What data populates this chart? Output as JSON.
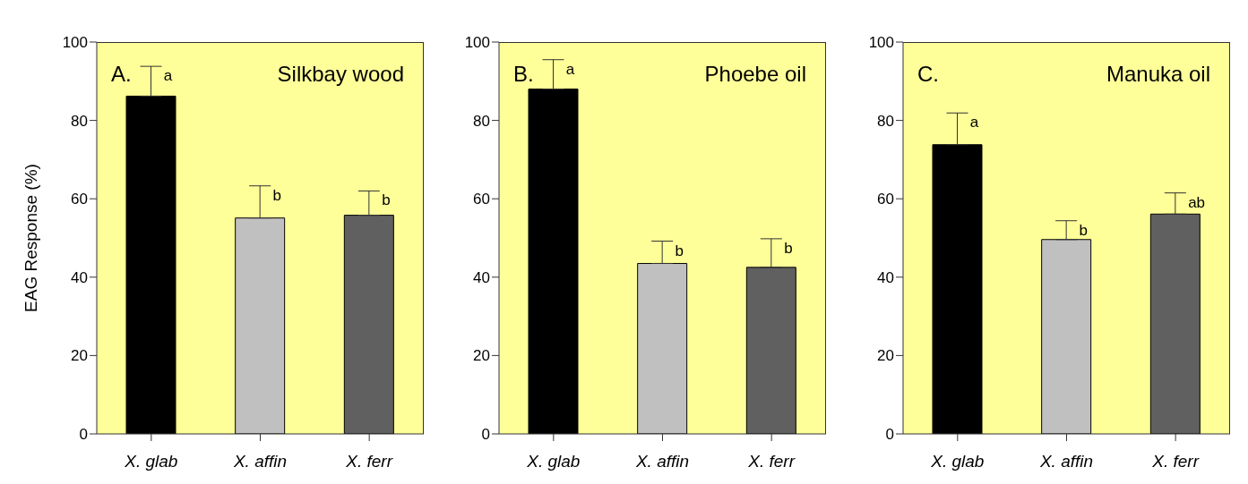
{
  "chart_data": [
    {
      "type": "bar",
      "title": "Silkbay wood",
      "ylabel": "EAG  Response  (%)",
      "categories": [
        "X. glab",
        "X. affin",
        "X. ferr"
      ],
      "values": [
        86.2,
        55.1,
        55.8
      ],
      "colors": [
        "#000000",
        "#c0c0c0",
        "#606060"
      ],
      "errors": [
        [
          86.2,
          93.8
        ],
        [
          55.1,
          63.3
        ],
        [
          55.8,
          62.0
        ]
      ],
      "ylim": [
        0,
        100
      ],
      "yticks": [
        0,
        20,
        40,
        60,
        80,
        100
      ],
      "grid": false,
      "legend": false,
      "annotations": [
        "A.",
        {
          "text": "a",
          "x": "X. glab",
          "y": 93.8
        },
        {
          "text": "b",
          "x": "X. affin",
          "y": 63.3
        },
        {
          "text": "b",
          "x": "X. ferr",
          "y": 62.0
        }
      ]
    },
    {
      "type": "bar",
      "title": "Phoebe oil",
      "categories": [
        "X. glab",
        "X. affin",
        "X. ferr"
      ],
      "values": [
        88.0,
        43.5,
        42.5
      ],
      "colors": [
        "#000000",
        "#c0c0c0",
        "#606060"
      ],
      "errors": [
        [
          88.0,
          95.5
        ],
        [
          43.5,
          49.2
        ],
        [
          42.5,
          49.8
        ]
      ],
      "ylim": [
        0,
        100
      ],
      "yticks": [
        0,
        20,
        40,
        60,
        80,
        100
      ],
      "grid": false,
      "legend": false,
      "annotations": [
        "B.",
        {
          "text": "a",
          "x": "X. glab",
          "y": 95.5
        },
        {
          "text": "b",
          "x": "X. affin",
          "y": 49.2
        },
        {
          "text": "b",
          "x": "X. ferr",
          "y": 49.8
        }
      ]
    },
    {
      "type": "bar",
      "title": "Manuka oil",
      "categories": [
        "X. glab",
        "X. affin",
        "X. ferr"
      ],
      "values": [
        73.8,
        49.6,
        56.1
      ],
      "colors": [
        "#000000",
        "#c0c0c0",
        "#606060"
      ],
      "errors": [
        [
          73.8,
          81.9
        ],
        [
          49.6,
          54.4
        ],
        [
          56.1,
          61.5
        ]
      ],
      "ylim": [
        0,
        100
      ],
      "yticks": [
        0,
        20,
        40,
        60,
        80,
        100
      ],
      "grid": false,
      "legend": false,
      "annotations": [
        "C.",
        {
          "text": "a",
          "x": "X. glab",
          "y": 81.9
        },
        {
          "text": "b",
          "x": "X. affin",
          "y": 54.4
        },
        {
          "text": "ab",
          "x": "X. ferr",
          "y": 61.5
        }
      ]
    }
  ]
}
